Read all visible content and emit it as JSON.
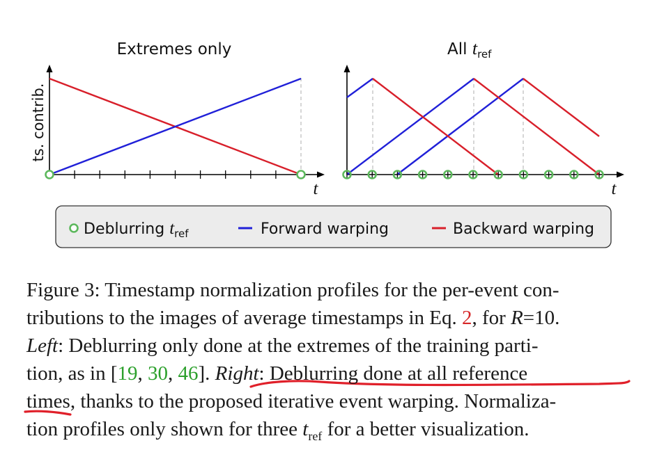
{
  "figure": {
    "colors": {
      "forward": "#2020d8",
      "backward": "#d81f2a",
      "marker": "#5cb85c",
      "axis": "#000000",
      "guide": "#bbbbbb",
      "ref_red": "#d62728",
      "ref_green": "#2ca02c",
      "annotation": "#e0202a"
    },
    "left_panel": {
      "title": "Extremes only",
      "ylabel": "ts. contrib.",
      "xlabel": "t"
    },
    "right_panel": {
      "title_main": "All ",
      "title_var": "t",
      "title_sub": "ref",
      "xlabel": "t"
    },
    "legend": {
      "deblurring": "Deblurring ",
      "deblurring_var": "t",
      "deblurring_sub": "ref",
      "forward": "Forward warping",
      "backward": "Backward warping"
    }
  },
  "caption": {
    "figure_label": "Figure 3:",
    "line1": " Timestamp normalization profiles for the per-event con-",
    "line2a": "tributions to the images of average timestamps in Eq. ",
    "eq_ref": "2",
    "line2b": ", for ",
    "r_var": "R",
    "r_value": "=10.",
    "left_word": "Left",
    "line3": ": Deblurring only done at the extremes of the training parti-",
    "line4a": "tion, as in [",
    "cite1": "19",
    "cite_sep1": ", ",
    "cite2": "30",
    "cite_sep2": ", ",
    "cite3": "46",
    "line4b": "]. ",
    "right_word": "Right",
    "line4c": ": Deblurring done at all reference",
    "line5": "times, thanks to the proposed iterative event warping. Normaliza-",
    "line6a": "tion profiles only shown for three ",
    "tref_var": "t",
    "tref_sub": "ref",
    "line6b": " for a better visualization."
  }
}
